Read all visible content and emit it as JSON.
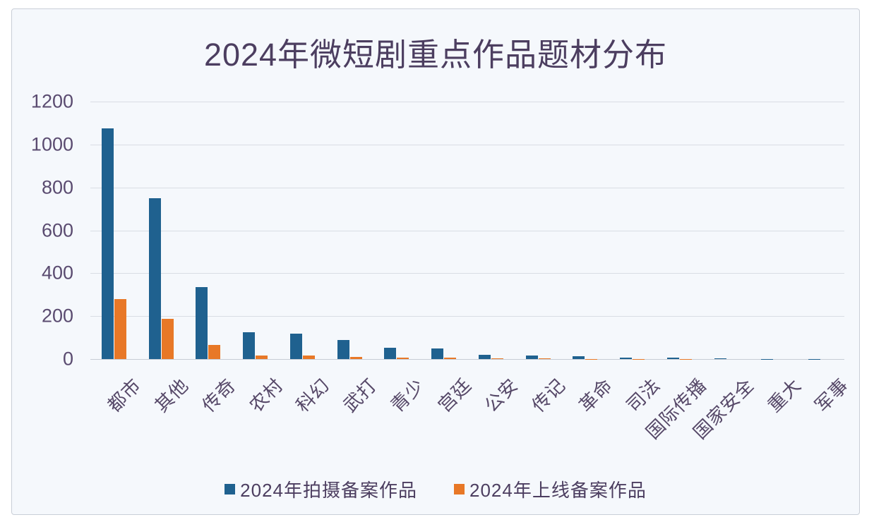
{
  "chart_data": {
    "type": "bar",
    "title": "2024年微短剧重点作品题材分布",
    "categories": [
      "都市",
      "其他",
      "传奇",
      "农村",
      "科幻",
      "武打",
      "青少",
      "宫廷",
      "公安",
      "传记",
      "革命",
      "司法",
      "国际传播",
      "国家安全",
      "重大",
      "军事"
    ],
    "series": [
      {
        "name": "2024年拍摄备案作品",
        "color": "#1f618f",
        "values": [
          1075,
          748,
          335,
          125,
          119,
          89,
          54,
          49,
          21,
          16,
          13,
          6,
          5,
          2,
          1,
          1
        ]
      },
      {
        "name": "2024年上线备案作品",
        "color": "#e87827",
        "values": [
          281,
          187,
          66,
          16,
          15,
          9,
          8,
          8,
          3,
          2,
          1,
          1,
          1,
          0,
          0,
          0
        ]
      }
    ],
    "y_ticks": [
      0,
      200,
      400,
      600,
      800,
      1000,
      1200
    ],
    "ylim": [
      0,
      1200
    ],
    "xlabel": "",
    "ylabel": "",
    "grid": true,
    "legend_position": "bottom",
    "colors": {
      "title_text": "#4c3e60",
      "axis_text": "#5a4b70",
      "gridline": "#d9dde4",
      "panel_background": "#f5f8fc",
      "panel_border": "#c9ced7"
    }
  }
}
